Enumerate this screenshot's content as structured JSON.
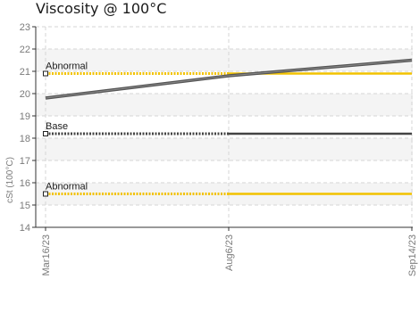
{
  "chart_data": {
    "type": "line",
    "title": "Viscosity @ 100°C",
    "ylabel": "cSt (100°C)",
    "xlabel": "",
    "ylim": [
      14,
      23
    ],
    "yticks": [
      14,
      15,
      16,
      17,
      18,
      19,
      20,
      21,
      22,
      23
    ],
    "x": [
      "Mar16/23",
      "Aug6/23",
      "Sep14/23"
    ],
    "grid": true,
    "series": [
      {
        "values": [
          19.8,
          20.8,
          21.5
        ],
        "color": "#555555"
      }
    ],
    "reference_lines": [
      {
        "label": "Abnormal",
        "value": 20.9,
        "color": "#f2c200"
      },
      {
        "label": "Base",
        "value": 18.2,
        "color": "#444444"
      },
      {
        "label": "Abnormal",
        "value": 15.5,
        "color": "#f2c200"
      }
    ]
  }
}
